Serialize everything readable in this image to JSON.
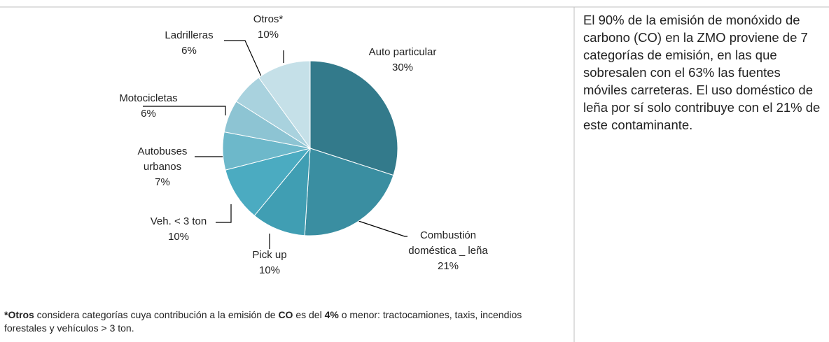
{
  "chart_data": {
    "type": "pie",
    "categories": [
      "Auto particular",
      "Combustión doméstica _ leña",
      "Pick up",
      "Veh. < 3 ton",
      "Autobuses urbanos",
      "Motocicletas",
      "Ladrilleras",
      "Otros*"
    ],
    "values": [
      30,
      21,
      10,
      10,
      7,
      6,
      6,
      10
    ],
    "value_labels": [
      "30%",
      "21%",
      "10%",
      "10%",
      "7%",
      "6%",
      "6%",
      "10%"
    ],
    "colors": [
      "#337a8b",
      "#3a8ea1",
      "#409eb3",
      "#4babc1",
      "#6db8ca",
      "#8dc4d3",
      "#a9d2de",
      "#c5e0e8"
    ]
  },
  "note": [
    "*Otros",
    " considera categorías cuya contribución a la emisión de ",
    "CO",
    " es del ",
    "4%",
    " o menor: tractocamiones, taxis, incendios forestales y vehículos > 3 ton."
  ],
  "side_text": "El 90% de la emisión de monóxido de carbono (CO) en la ZMO proviene de 7 categorías de emisión, en las que sobresalen con el 63% las fuentes móviles carreteras. El uso doméstico de leña por sí solo contribuye con el 21% de este contaminante."
}
